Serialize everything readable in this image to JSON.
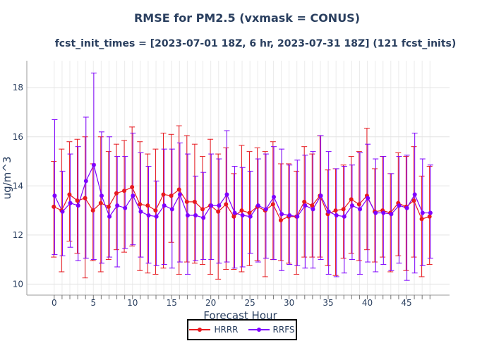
{
  "chart_data": {
    "type": "line",
    "title": "RMSE for PM2.5 (vxmask = CONUS)",
    "subtitle": "fcst_init_times = [2023-07-01 18Z, 6 hr, 2023-07-31 18Z] (121 fcst_inits)",
    "xlabel": "Forecast Hour",
    "ylabel": "ug/m^3",
    "xlim": [
      -3.5,
      50.5
    ],
    "ylim": [
      9.55,
      19.1
    ],
    "xticks": [
      0,
      5,
      10,
      15,
      20,
      25,
      30,
      35,
      40,
      45
    ],
    "yticks": [
      10,
      12,
      14,
      16,
      18
    ],
    "grid": true,
    "legend_position": "bottom-center",
    "x": [
      0,
      1,
      2,
      3,
      4,
      5,
      6,
      7,
      8,
      9,
      10,
      11,
      12,
      13,
      14,
      15,
      16,
      17,
      18,
      19,
      20,
      21,
      22,
      23,
      24,
      25,
      26,
      27,
      28,
      29,
      30,
      31,
      32,
      33,
      34,
      35,
      36,
      37,
      38,
      39,
      40,
      41,
      42,
      43,
      44,
      45,
      46,
      47,
      48
    ],
    "series": [
      {
        "name": "HRRR",
        "color": "#e8191f",
        "values": [
          13.15,
          13.0,
          13.65,
          13.4,
          13.5,
          13.0,
          13.3,
          13.15,
          13.7,
          13.8,
          13.95,
          13.25,
          13.2,
          13.0,
          13.65,
          13.6,
          13.85,
          13.35,
          13.35,
          13.05,
          13.2,
          12.95,
          13.25,
          12.75,
          13.0,
          12.9,
          13.15,
          13.0,
          13.25,
          12.6,
          12.75,
          12.75,
          13.35,
          13.2,
          13.6,
          12.85,
          13.0,
          13.05,
          13.45,
          13.25,
          13.6,
          12.95,
          13.0,
          12.9,
          13.3,
          13.15,
          13.4,
          12.65,
          12.75
        ],
        "upper": [
          15.0,
          15.5,
          15.8,
          15.9,
          16.0,
          14.9,
          16.0,
          15.4,
          15.7,
          15.85,
          16.4,
          15.8,
          15.3,
          15.5,
          16.15,
          16.1,
          16.45,
          16.05,
          15.7,
          15.2,
          15.9,
          15.3,
          15.55,
          14.5,
          15.65,
          15.4,
          15.55,
          15.4,
          15.8,
          14.9,
          14.9,
          14.6,
          15.6,
          15.3,
          16.05,
          14.65,
          14.7,
          14.85,
          15.2,
          15.4,
          16.35,
          14.7,
          15.2,
          14.5,
          15.35,
          15.2,
          15.6,
          14.4,
          14.8
        ],
        "lower": [
          11.1,
          10.5,
          11.75,
          11.25,
          10.25,
          10.95,
          10.5,
          11.0,
          11.4,
          11.3,
          11.55,
          10.55,
          10.45,
          10.4,
          10.65,
          11.7,
          10.4,
          10.9,
          10.85,
          10.8,
          10.4,
          10.2,
          10.6,
          10.6,
          10.5,
          10.75,
          10.95,
          10.3,
          11.0,
          10.95,
          10.85,
          10.4,
          11.1,
          11.1,
          11.1,
          10.75,
          10.35,
          11.05,
          11.25,
          10.95,
          11.4,
          10.9,
          11.1,
          10.5,
          11.15,
          10.55,
          11.1,
          10.3,
          10.8
        ]
      },
      {
        "name": "RRFS",
        "color": "#7f00ff",
        "values": [
          13.6,
          12.95,
          13.3,
          13.2,
          14.2,
          14.85,
          13.6,
          12.75,
          13.2,
          13.1,
          13.6,
          12.95,
          12.8,
          12.75,
          13.2,
          13.05,
          13.65,
          12.8,
          12.8,
          12.7,
          13.2,
          13.2,
          13.65,
          12.9,
          12.8,
          12.75,
          13.2,
          13.05,
          13.55,
          12.85,
          12.8,
          12.75,
          13.2,
          13.05,
          13.6,
          12.95,
          12.8,
          12.75,
          13.2,
          13.05,
          13.5,
          12.9,
          12.9,
          12.85,
          13.2,
          13.1,
          13.65,
          12.9,
          12.9
        ],
        "upper": [
          16.7,
          14.6,
          15.3,
          15.6,
          16.8,
          18.6,
          16.2,
          16.0,
          15.2,
          15.2,
          16.15,
          15.35,
          14.8,
          14.2,
          15.5,
          15.5,
          15.75,
          15.3,
          14.4,
          14.55,
          15.3,
          15.1,
          16.25,
          14.8,
          14.75,
          14.6,
          15.1,
          15.3,
          15.6,
          15.5,
          14.85,
          15.05,
          15.25,
          15.4,
          16.05,
          15.4,
          14.7,
          14.8,
          14.85,
          15.35,
          15.7,
          15.1,
          15.2,
          14.5,
          15.2,
          15.25,
          16.15,
          15.1,
          14.85
        ],
        "lower": [
          11.2,
          11.15,
          11.5,
          10.95,
          11.05,
          11.0,
          10.85,
          11.1,
          10.7,
          11.45,
          11.6,
          11.1,
          10.85,
          10.75,
          10.8,
          10.65,
          10.9,
          10.4,
          10.95,
          11.0,
          11.0,
          10.85,
          10.9,
          10.65,
          10.7,
          11.25,
          10.9,
          11.05,
          11.0,
          10.55,
          10.8,
          10.75,
          10.65,
          10.65,
          11.0,
          10.4,
          10.3,
          10.45,
          11.0,
          10.4,
          10.9,
          10.5,
          10.8,
          10.55,
          10.85,
          10.15,
          10.45,
          10.75,
          11.05
        ]
      }
    ]
  }
}
